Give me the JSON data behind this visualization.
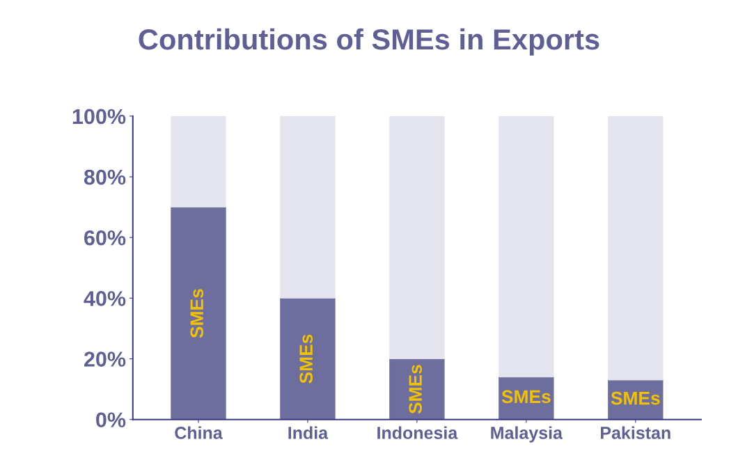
{
  "chart_data": {
    "type": "bar",
    "title": "Contributions of SMEs in Exports",
    "categories": [
      "China",
      "India",
      "Indonesia",
      "Malaysia",
      "Pakistan"
    ],
    "stacked": true,
    "series": [
      {
        "name": "SMEs",
        "color": "#6e6e9e",
        "values": [
          70,
          40,
          20,
          14,
          13
        ]
      },
      {
        "color": "#e4e4ee",
        "values": [
          30,
          60,
          80,
          86,
          87
        ]
      }
    ],
    "ylim": [
      0,
      100
    ],
    "yticks": [
      {
        "value": 0,
        "label": "0%"
      },
      {
        "value": 20,
        "label": "20%"
      },
      {
        "value": 40,
        "label": "40%"
      },
      {
        "value": 60,
        "label": "60%"
      },
      {
        "value": 80,
        "label": "80%"
      },
      {
        "value": 100,
        "label": "100%"
      }
    ],
    "grid": false,
    "legend": false
  }
}
